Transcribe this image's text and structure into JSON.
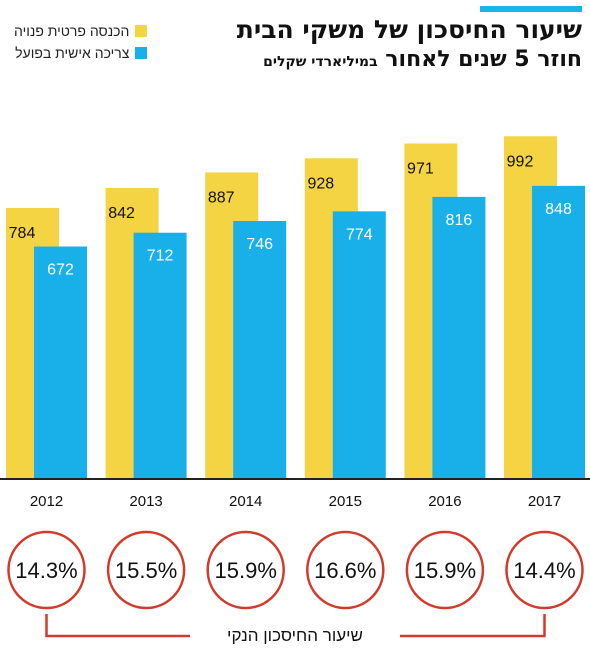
{
  "header": {
    "title_line1": "שיעור החיסכון של משקי הבית",
    "title_line2": "חוזר 5 שנים לאחור",
    "title_unit": "במיליארדי שקלים"
  },
  "legend": {
    "income_label": "הכנסה פרטית פנויה",
    "consumption_label": "צריכה אישית בפועל"
  },
  "colors": {
    "income": "#f4d442",
    "consumption": "#19b0ea",
    "circle": "#d23a2a",
    "accent": "#18b3e8"
  },
  "chart_data": {
    "type": "bar",
    "categories": [
      "2012",
      "2013",
      "2014",
      "2015",
      "2016",
      "2017"
    ],
    "series": [
      {
        "name": "הכנסה פרטית פנויה",
        "values": [
          784,
          842,
          887,
          928,
          971,
          992
        ]
      },
      {
        "name": "צריכה אישית בפועל",
        "values": [
          672,
          712,
          746,
          774,
          816,
          848
        ]
      }
    ],
    "savings_rate": [
      "14.3%",
      "15.5%",
      "15.9%",
      "16.6%",
      "15.9%",
      "14.4%"
    ],
    "savings_rate_label": "שיעור החיסכון הנקי"
  }
}
